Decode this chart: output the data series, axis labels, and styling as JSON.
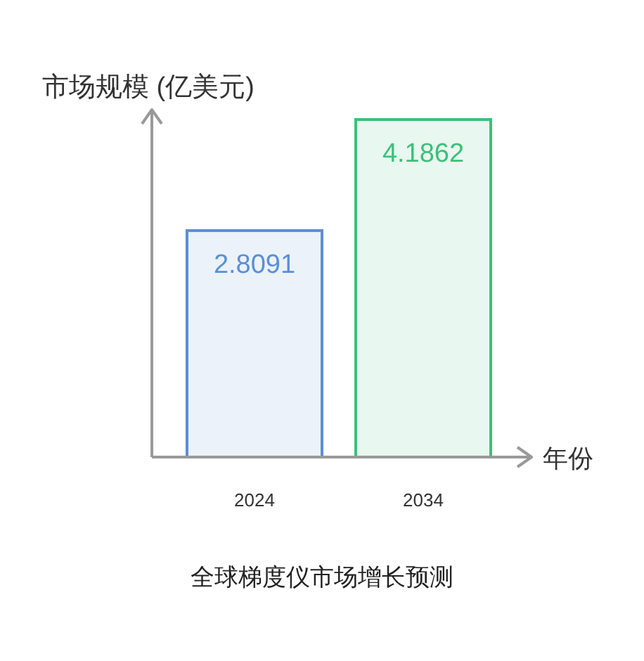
{
  "chart_data": {
    "type": "bar",
    "title": "全球梯度仪市场增长预测",
    "ylabel": "市场规模 (亿美元)",
    "xlabel": "年份",
    "categories": [
      "2024",
      "2034"
    ],
    "values": [
      2.8091,
      4.1862
    ],
    "colors": [
      "#5b8fd4",
      "#3dbf7a"
    ],
    "data_labels": true
  }
}
